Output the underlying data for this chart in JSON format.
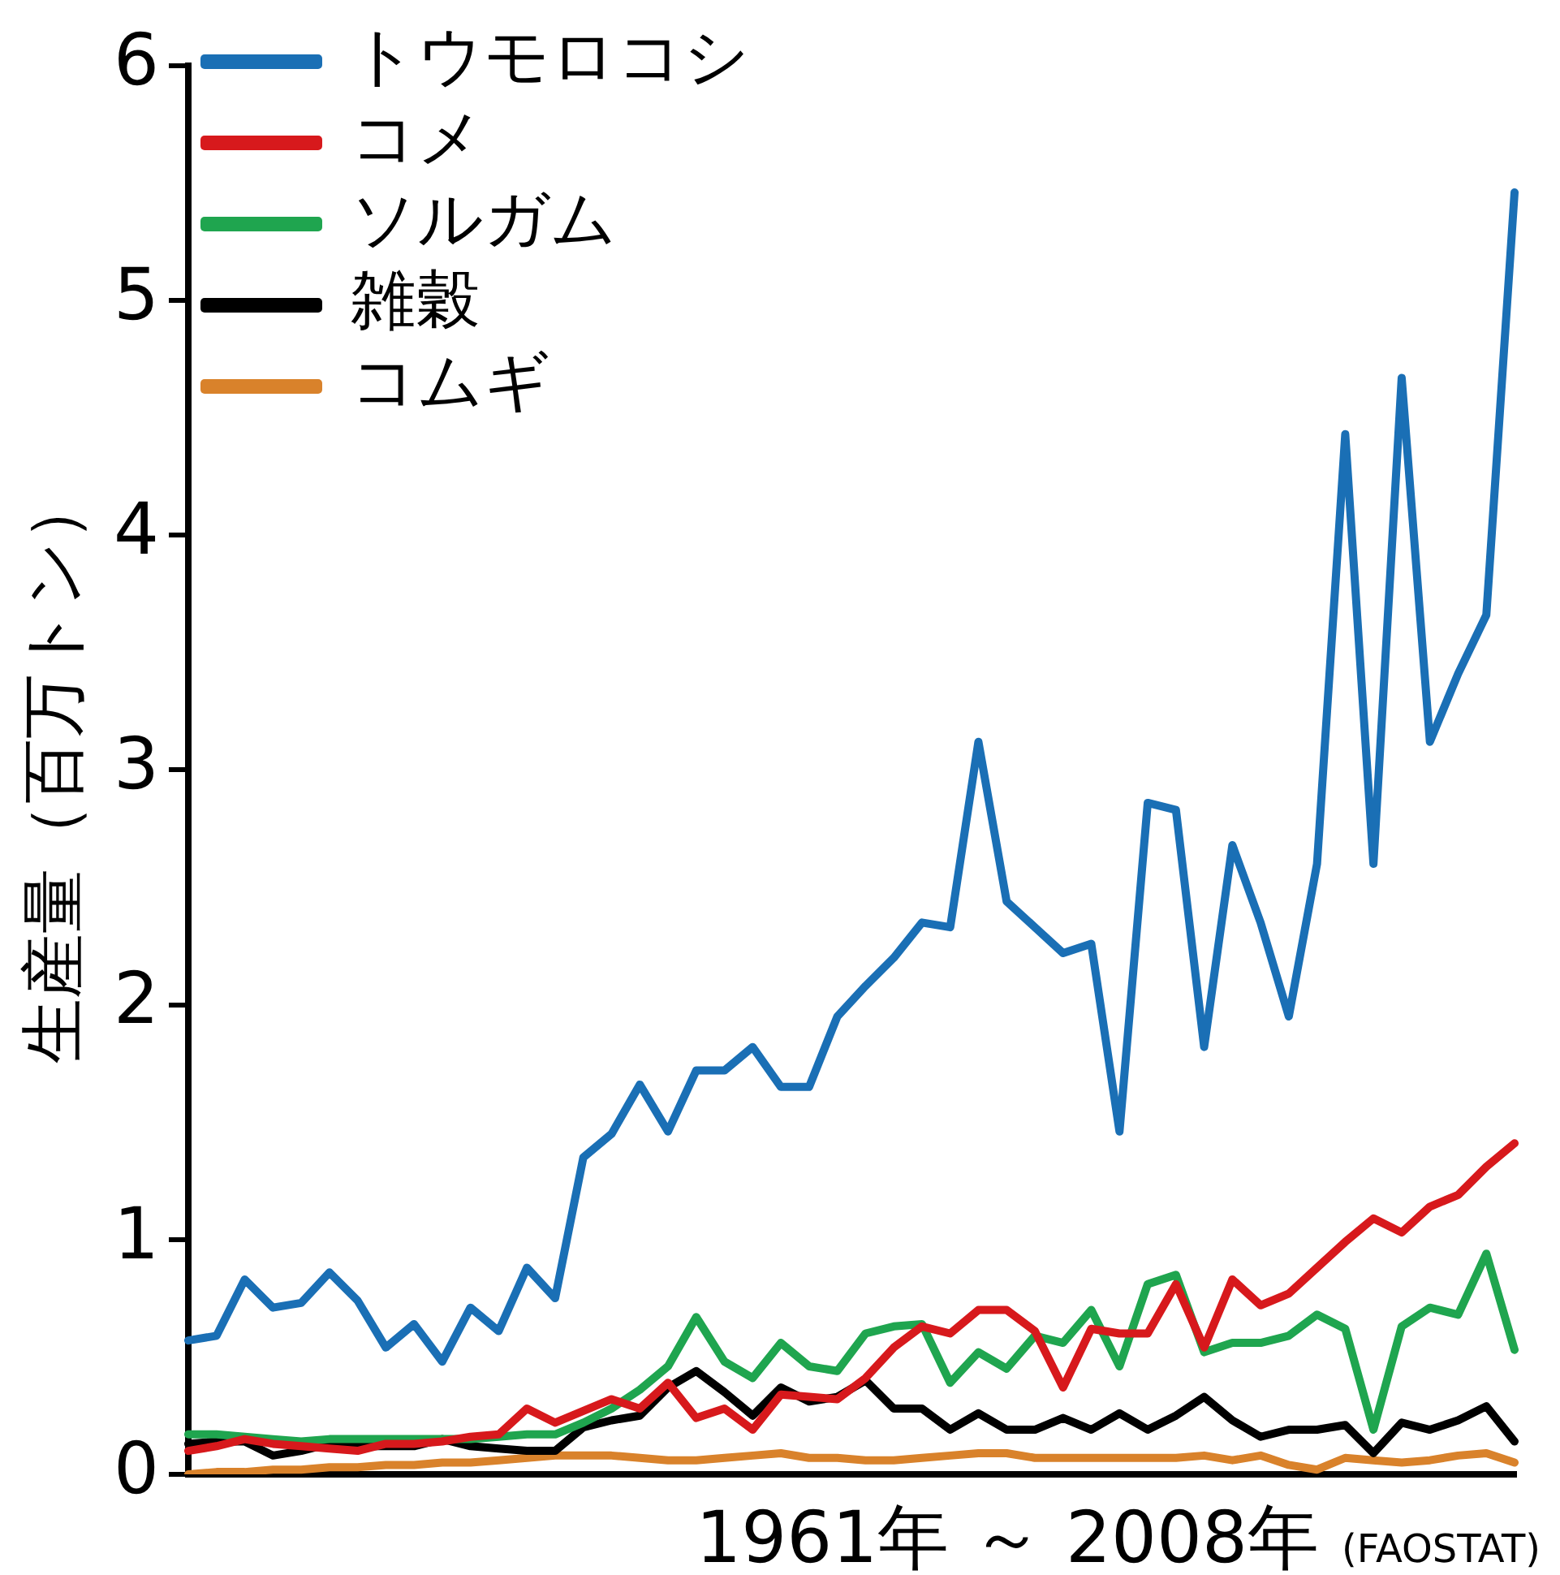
{
  "chart_data": {
    "type": "line",
    "xlabel": "1961年 ～ 2008年",
    "ylabel": "生産量（百万トン）",
    "annotations": [
      "(FAOSTAT)"
    ],
    "categories": [
      null,
      null,
      null,
      null,
      null,
      null,
      null,
      null,
      null,
      null,
      null,
      null,
      null,
      null,
      null,
      null,
      null,
      null,
      null,
      null,
      null,
      null,
      null,
      null,
      null,
      null,
      null,
      null,
      null,
      null,
      null,
      null,
      null,
      null,
      null,
      null,
      null,
      null,
      null,
      null,
      null,
      null,
      null,
      null,
      null,
      null,
      null,
      null
    ],
    "series": [
      {
        "name": "トウモロコシ",
        "color": "#1a6fb5",
        "values": [
          0.57,
          0.59,
          0.83,
          0.71,
          0.73,
          0.86,
          0.74,
          0.54,
          0.64,
          0.48,
          0.71,
          0.61,
          0.88,
          0.75,
          1.35,
          1.45,
          1.66,
          1.46,
          1.72,
          1.72,
          1.82,
          1.65,
          1.65,
          1.95,
          2.08,
          2.2,
          2.35,
          2.33,
          3.12,
          2.44,
          2.33,
          2.22,
          2.26,
          1.46,
          2.86,
          2.83,
          1.82,
          2.68,
          2.35,
          1.95,
          2.6,
          4.43,
          2.6,
          4.67,
          3.12,
          3.41,
          3.66,
          5.46
        ]
      },
      {
        "name": "コメ",
        "color": "#d7191c",
        "values": [
          0.1,
          0.12,
          0.15,
          0.13,
          0.12,
          0.11,
          0.1,
          0.13,
          0.13,
          0.14,
          0.16,
          0.17,
          0.28,
          0.22,
          0.27,
          0.32,
          0.28,
          0.39,
          0.24,
          0.28,
          0.19,
          0.34,
          0.33,
          0.32,
          0.41,
          0.54,
          0.63,
          0.6,
          0.7,
          0.7,
          0.61,
          0.37,
          0.62,
          0.6,
          0.6,
          0.81,
          0.54,
          0.83,
          0.72,
          0.77,
          0.88,
          0.99,
          1.09,
          1.03,
          1.14,
          1.19,
          1.31,
          1.41
        ]
      },
      {
        "name": "ソルガム",
        "color": "#1fa54f",
        "values": [
          0.17,
          0.17,
          0.16,
          0.15,
          0.14,
          0.15,
          0.15,
          0.15,
          0.15,
          0.15,
          0.15,
          0.16,
          0.17,
          0.17,
          0.22,
          0.28,
          0.36,
          0.46,
          0.67,
          0.48,
          0.41,
          0.56,
          0.46,
          0.44,
          0.6,
          0.63,
          0.64,
          0.39,
          0.52,
          0.45,
          0.59,
          0.56,
          0.7,
          0.46,
          0.81,
          0.85,
          0.52,
          0.56,
          0.56,
          0.59,
          0.68,
          0.62,
          0.19,
          0.63,
          0.71,
          0.68,
          0.94,
          0.53
        ]
      },
      {
        "name": "雑穀",
        "color": "#000000",
        "values": [
          0.13,
          0.14,
          0.14,
          0.08,
          0.1,
          0.13,
          0.12,
          0.12,
          0.12,
          0.15,
          0.12,
          0.11,
          0.1,
          0.1,
          0.2,
          0.23,
          0.25,
          0.37,
          0.44,
          0.35,
          0.25,
          0.37,
          0.31,
          0.33,
          0.4,
          0.28,
          0.28,
          0.19,
          0.26,
          0.19,
          0.19,
          0.24,
          0.19,
          0.26,
          0.19,
          0.25,
          0.33,
          0.23,
          0.16,
          0.19,
          0.19,
          0.21,
          0.09,
          0.22,
          0.19,
          0.23,
          0.29,
          0.14
        ]
      },
      {
        "name": "コムギ",
        "color": "#d9822b",
        "values": [
          0.0,
          0.01,
          0.01,
          0.02,
          0.02,
          0.03,
          0.03,
          0.04,
          0.04,
          0.05,
          0.05,
          0.06,
          0.07,
          0.08,
          0.08,
          0.08,
          0.07,
          0.06,
          0.06,
          0.07,
          0.08,
          0.09,
          0.07,
          0.07,
          0.06,
          0.06,
          0.07,
          0.08,
          0.09,
          0.09,
          0.07,
          0.07,
          0.07,
          0.07,
          0.07,
          0.07,
          0.08,
          0.06,
          0.08,
          0.04,
          0.02,
          0.07,
          0.06,
          0.05,
          0.06,
          0.08,
          0.09,
          0.05
        ]
      }
    ],
    "ylim": [
      0,
      6
    ],
    "yticks": [
      0,
      1,
      2,
      3,
      4,
      5,
      6
    ],
    "tick_labels": "y",
    "grid": false,
    "legend": "top left",
    "marker": "none",
    "line_style": "solid"
  }
}
